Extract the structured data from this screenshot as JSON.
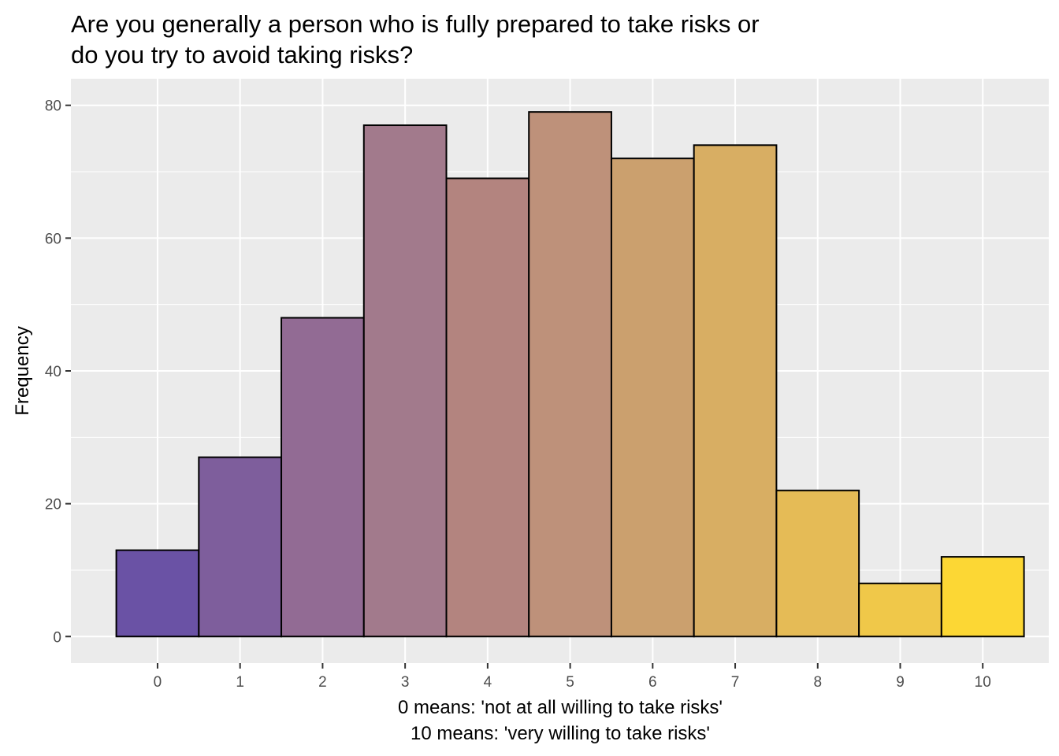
{
  "chart_data": {
    "type": "bar",
    "title_lines": [
      "Are you generally a person who is fully prepared to take risks or",
      "do you try to avoid taking risks?"
    ],
    "xlabel_lines": [
      "0 means: 'not at all willing to take risks'",
      "10 means: 'very willing to take risks'"
    ],
    "ylabel": "Frequency",
    "categories": [
      "0",
      "1",
      "2",
      "3",
      "4",
      "5",
      "6",
      "7",
      "8",
      "9",
      "10"
    ],
    "values": [
      13,
      27,
      48,
      77,
      69,
      79,
      72,
      74,
      22,
      8,
      12
    ],
    "bar_colors": [
      "#6a52a5",
      "#7e5e9c",
      "#926b94",
      "#a27a8c",
      "#b3847f",
      "#be917a",
      "#cba06e",
      "#d8ae63",
      "#e5bb56",
      "#f0c849",
      "#fcd734"
    ],
    "xlim": [
      -1.05,
      10.8
    ],
    "ylim": [
      -4,
      84
    ],
    "yticks": [
      0,
      20,
      40,
      60,
      80
    ],
    "grid": true,
    "panel_background": "#ebebeb",
    "gridline_color": "#ffffff",
    "bar_outline_color": "#000000",
    "legend": "none"
  }
}
